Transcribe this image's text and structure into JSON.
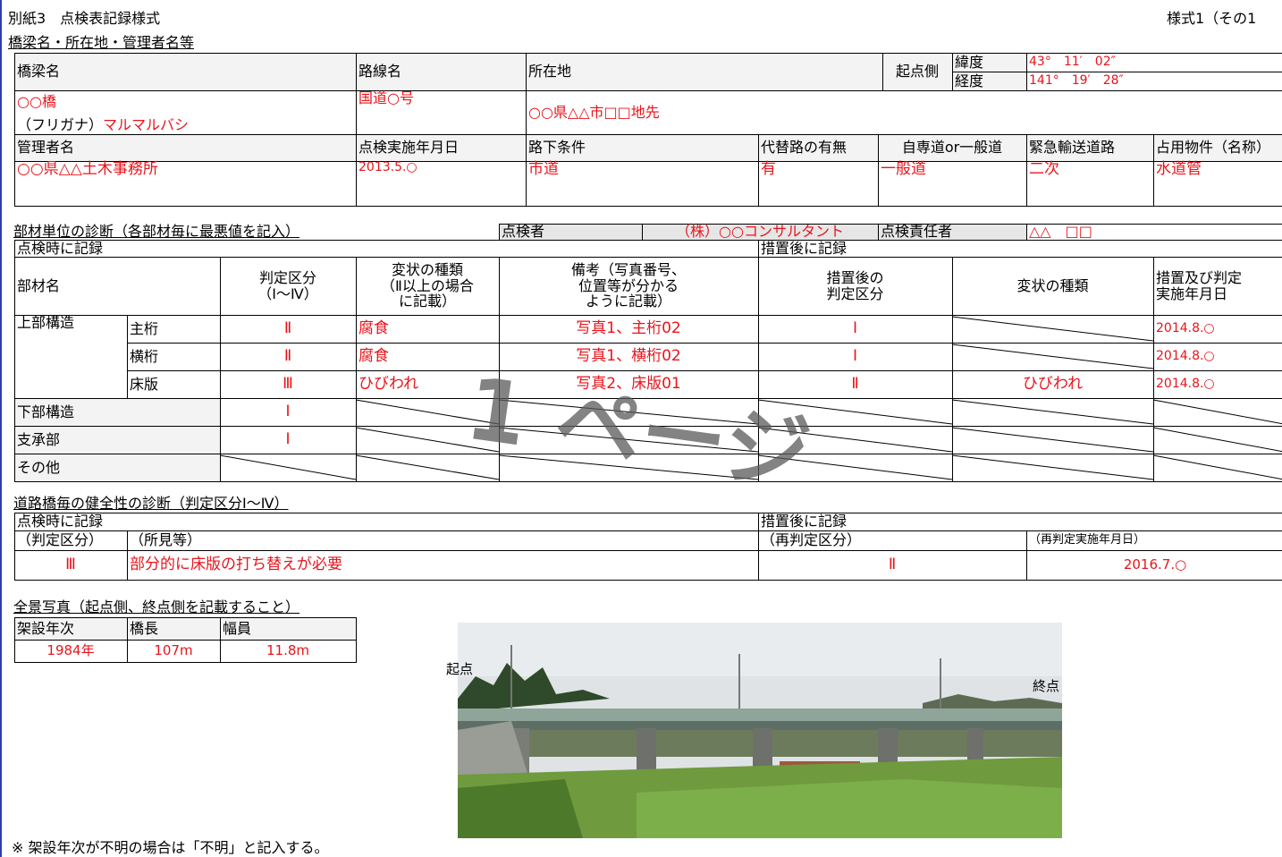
{
  "header": {
    "title": "別紙3　点検表記録様式",
    "form_no": "様式1（その1",
    "section": "橋梁名・所在地・管理者名等"
  },
  "bridge_info": {
    "labels": {
      "bridge_name": "橋梁名",
      "route": "路線名",
      "location": "所在地",
      "start_side": "起点側",
      "lat": "緯度",
      "lon": "経度",
      "manager": "管理者名",
      "inspection_date": "点検実施年月日",
      "under_condition": "路下条件",
      "detour": "代替路の有無",
      "road_type": "自専道or一般道",
      "emergency": "緊急輸送道路",
      "occupancy": "占用物件（名称）"
    },
    "values": {
      "bridge_name": "○○橋",
      "furigana_label": "（フリガナ）",
      "furigana": "マルマルバシ",
      "route": "国道○号",
      "location": "○○県△△市□□地先",
      "lat": "43°　11′　02″",
      "lon": "141°　19′　28″",
      "manager": "○○県△△土木事務所",
      "inspection_date": "2013.5.○",
      "under_condition": "市道",
      "detour": "有",
      "road_type": "一般道",
      "emergency": "二次",
      "occupancy": "水道管"
    }
  },
  "member_diagnosis": {
    "title": "部材単位の診断（各部材毎に最悪値を記入）",
    "inspector_label": "点検者",
    "inspector": "（株）○○コンサルタント",
    "chief_label": "点検責任者",
    "chief": "△△　□□",
    "at_inspection": "点検時に記録",
    "after_measure": "措置後に記録",
    "columns": [
      "部材名",
      "判定区分\n（Ⅰ～Ⅳ）",
      "変状の種類\n（Ⅱ以上の場合\nに記載）",
      "備考（写真番号、\n位置等が分かる\nように記載）",
      "措置後の\n判定区分",
      "変状の種類",
      "措置及び判定\n実施年月日"
    ],
    "rows": [
      {
        "group": "上部構造",
        "member": "主桁",
        "grade": "Ⅱ",
        "damage": "腐食",
        "remarks": "写真1、主桁02",
        "grade_after": "Ⅰ",
        "date": "2014.8.○"
      },
      {
        "member": "横桁",
        "grade": "Ⅱ",
        "damage": "腐食",
        "remarks": "写真1、横桁02",
        "grade_after": "Ⅰ",
        "date": "2014.8.○"
      },
      {
        "member": "床版",
        "grade": "Ⅲ",
        "damage": "ひびわれ",
        "remarks": "写真2、床版01",
        "grade_after": "Ⅱ",
        "damage_after": "ひびわれ",
        "date": "2014.8.○"
      },
      {
        "group": "下部構造",
        "grade": "Ⅰ"
      },
      {
        "group": "支承部",
        "grade": "Ⅰ"
      },
      {
        "group": "その他"
      }
    ]
  },
  "health": {
    "title": "道路橋毎の健全性の診断（判定区分Ⅰ～Ⅳ）",
    "at_inspection": "点検時に記録",
    "after_measure": "措置後に記録",
    "labels": [
      "（判定区分）",
      "（所見等）",
      "（再判定区分）",
      "（再判定実施年月日）"
    ],
    "values": [
      "Ⅲ",
      "部分的に床版の打ち替えが必要",
      "Ⅱ",
      "2016.7.○"
    ]
  },
  "photo": {
    "title": "全景写真（起点側、終点側を記載すること）",
    "labels": [
      "架設年次",
      "橋長",
      "幅員"
    ],
    "values": [
      "1984年",
      "107m",
      "11.8m"
    ],
    "start": "起点",
    "end": "終点"
  },
  "footnote": "※ 架設年次が不明の場合は「不明」と記入する。",
  "watermark": "1 ページ"
}
